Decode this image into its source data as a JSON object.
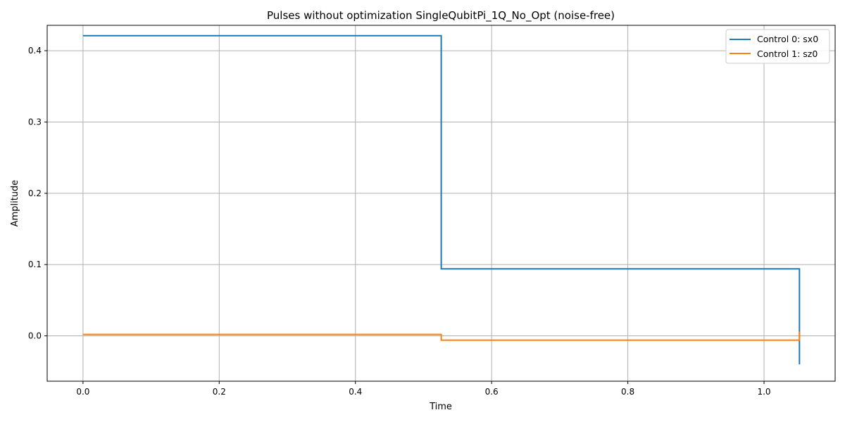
{
  "chart_data": {
    "type": "line",
    "title": "Pulses without optimization SingleQubitPi_1Q_No_Opt (noise-free)",
    "xlabel": "Time",
    "ylabel": "Amplitude",
    "xlim": [
      -0.0526,
      1.1044
    ],
    "ylim": [
      -0.0636,
      0.4356
    ],
    "xticks": [
      0.0,
      0.2,
      0.4,
      0.6,
      0.8,
      1.0
    ],
    "xtick_labels": [
      "0.0",
      "0.2",
      "0.4",
      "0.6",
      "0.8",
      "1.0"
    ],
    "yticks": [
      0.0,
      0.1,
      0.2,
      0.3,
      0.4
    ],
    "ytick_labels": [
      "0.0",
      "0.1",
      "0.2",
      "0.3",
      "0.4"
    ],
    "grid": true,
    "legend_position": "top-right",
    "series": [
      {
        "name": "Control 0: sx0",
        "color": "#1f77b4",
        "step": "post",
        "x": [
          0.0,
          0.526,
          1.052,
          1.052
        ],
        "y": [
          0.421,
          0.094,
          0.094,
          -0.04
        ]
      },
      {
        "name": "Control 1: sz0",
        "color": "#ff7f0e",
        "step": "post",
        "x": [
          0.0,
          0.526,
          1.052,
          1.052
        ],
        "y": [
          0.002,
          -0.006,
          -0.006,
          0.006
        ]
      }
    ]
  }
}
